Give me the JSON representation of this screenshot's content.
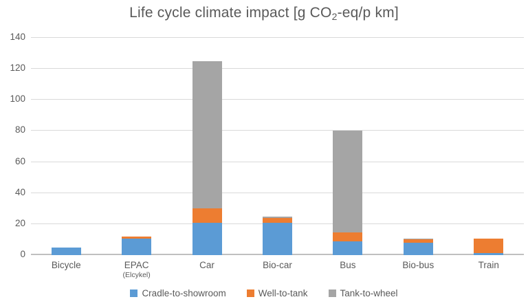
{
  "chart_data": {
    "type": "bar",
    "stacked": true,
    "title": "Life cycle climate impact [g CO2-eq/p km]",
    "title_parts": {
      "prefix": "Life cycle climate impact [g CO",
      "sub": "2",
      "suffix": "-eq/p km]"
    },
    "categories": [
      {
        "label": "Bicycle",
        "sublabel": ""
      },
      {
        "label": "EPAC",
        "sublabel": "(Elcykel)"
      },
      {
        "label": "Car",
        "sublabel": ""
      },
      {
        "label": "Bio-car",
        "sublabel": ""
      },
      {
        "label": "Bus",
        "sublabel": ""
      },
      {
        "label": "Bio-bus",
        "sublabel": ""
      },
      {
        "label": "Train",
        "sublabel": ""
      }
    ],
    "series": [
      {
        "name": "Cradle-to-showroom",
        "color": "#5B9BD5",
        "values": [
          5,
          10.5,
          21,
          21,
          9,
          8,
          1.2
        ]
      },
      {
        "name": "Well-to-tank",
        "color": "#ED7D31",
        "values": [
          0,
          1.5,
          9,
          3,
          5.5,
          2.2,
          9.3
        ]
      },
      {
        "name": "Tank-to-wheel",
        "color": "#A5A5A5",
        "values": [
          0,
          0,
          95,
          1,
          65.5,
          0.4,
          0
        ]
      }
    ],
    "totals": [
      5,
      12,
      125,
      25,
      80,
      10.6,
      10.5
    ],
    "ylim": [
      0,
      140
    ],
    "yticks": [
      0,
      20,
      40,
      60,
      80,
      100,
      120,
      140
    ],
    "xlabel": "",
    "ylabel": "",
    "grid": true,
    "legend_position": "bottom",
    "colors": {
      "grid": "#D9D9D9",
      "axis_line": "#BFBFBF",
      "text": "#595959",
      "background": "#FFFFFF"
    }
  }
}
